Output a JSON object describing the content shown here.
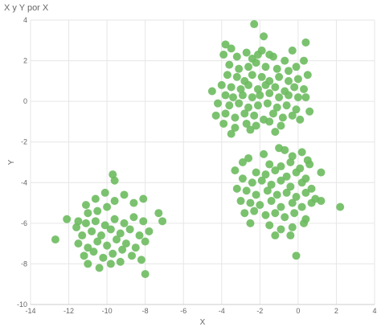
{
  "chart_data": {
    "type": "scatter",
    "title": "X y Y por X",
    "xlabel": "X",
    "ylabel": "Y",
    "xlim": [
      -14,
      4
    ],
    "ylim": [
      -10,
      4
    ],
    "x_ticks": [
      -14,
      -12,
      -10,
      -8,
      -6,
      -4,
      -2,
      0,
      2,
      4
    ],
    "y_ticks": [
      4,
      2,
      0,
      -2,
      -4,
      -6,
      -8,
      -10
    ],
    "grid": true,
    "point_color": "#6dbb5f",
    "series": [
      {
        "points": [
          [
            -2.3,
            3.8
          ],
          [
            -1.8,
            3.2
          ],
          [
            -3.8,
            2.8
          ],
          [
            -3.5,
            2.6
          ],
          [
            -2.7,
            2.4
          ],
          [
            -1.9,
            2.5
          ],
          [
            -1.5,
            2.3
          ],
          [
            0.4,
            2.9
          ],
          [
            -0.3,
            2.5
          ],
          [
            -3.9,
            2.3
          ],
          [
            -3.2,
            2.2
          ],
          [
            -2.4,
            2.1
          ],
          [
            -2.1,
            2.3
          ],
          [
            -1.3,
            2.2
          ],
          [
            -0.7,
            2.0
          ],
          [
            0.3,
            2.0
          ],
          [
            -3.6,
            1.8
          ],
          [
            -3.1,
            1.6
          ],
          [
            -2.6,
            1.7
          ],
          [
            -2.2,
            1.9
          ],
          [
            -1.7,
            1.7
          ],
          [
            -1.1,
            1.6
          ],
          [
            -0.5,
            1.5
          ],
          [
            -0.1,
            1.7
          ],
          [
            -3.7,
            1.3
          ],
          [
            -3.2,
            1.2
          ],
          [
            -2.8,
            1.0
          ],
          [
            -2.4,
            1.3
          ],
          [
            -1.9,
            1.2
          ],
          [
            -1.5,
            1.0
          ],
          [
            -1.0,
            1.2
          ],
          [
            -0.5,
            1.0
          ],
          [
            0.0,
            1.1
          ],
          [
            0.5,
            1.3
          ],
          [
            -4.0,
            0.8
          ],
          [
            -3.5,
            0.7
          ],
          [
            -3.0,
            0.6
          ],
          [
            -2.6,
            0.8
          ],
          [
            -2.1,
            0.6
          ],
          [
            -1.7,
            0.8
          ],
          [
            -1.2,
            0.7
          ],
          [
            -0.7,
            0.5
          ],
          [
            -0.2,
            0.7
          ],
          [
            0.3,
            0.6
          ],
          [
            -4.5,
            0.5
          ],
          [
            -3.8,
            0.3
          ],
          [
            -3.4,
            0.2
          ],
          [
            -2.9,
            0.3
          ],
          [
            -2.4,
            0.2
          ],
          [
            -2.0,
            0.3
          ],
          [
            -1.5,
            0.4
          ],
          [
            -1.0,
            0.2
          ],
          [
            -0.5,
            0.3
          ],
          [
            0.0,
            0.2
          ],
          [
            0.4,
            0.2
          ],
          [
            -4.2,
            -0.1
          ],
          [
            -3.6,
            -0.2
          ],
          [
            -3.1,
            -0.1
          ],
          [
            -2.6,
            -0.3
          ],
          [
            -2.1,
            -0.2
          ],
          [
            -1.6,
            -0.1
          ],
          [
            -1.1,
            -0.3
          ],
          [
            -0.6,
            -0.2
          ],
          [
            -0.1,
            -0.4
          ],
          [
            0.6,
            -0.5
          ],
          [
            -4.3,
            -0.7
          ],
          [
            -3.8,
            -0.6
          ],
          [
            -3.3,
            -0.8
          ],
          [
            -2.8,
            -0.6
          ],
          [
            -2.3,
            -0.7
          ],
          [
            -1.8,
            -0.9
          ],
          [
            -1.3,
            -0.6
          ],
          [
            -0.8,
            -0.8
          ],
          [
            -0.3,
            -0.7
          ],
          [
            0.1,
            -0.9
          ],
          [
            -3.9,
            -1.1
          ],
          [
            -3.3,
            -1.3
          ],
          [
            -2.7,
            -1.1
          ],
          [
            -2.2,
            -1.2
          ],
          [
            -1.5,
            -1.0
          ],
          [
            -0.9,
            -1.2
          ],
          [
            -3.5,
            -1.6
          ],
          [
            -2.5,
            -1.4
          ],
          [
            -1.2,
            -1.5
          ],
          [
            -1.0,
            -2.3
          ],
          [
            -0.7,
            -2.4
          ],
          [
            0.2,
            -2.5
          ],
          [
            -1.8,
            -2.6
          ],
          [
            -2.6,
            -2.8
          ],
          [
            -0.3,
            -2.7
          ],
          [
            0.5,
            -2.9
          ],
          [
            -2.9,
            -3.0
          ],
          [
            -1.5,
            -3.1
          ],
          [
            -0.9,
            -3.2
          ],
          [
            -0.4,
            -3.0
          ],
          [
            0.1,
            -3.3
          ],
          [
            0.6,
            -3.1
          ],
          [
            -3.3,
            -3.4
          ],
          [
            -2.2,
            -3.5
          ],
          [
            -1.7,
            -3.6
          ],
          [
            -1.2,
            -3.4
          ],
          [
            -0.6,
            -3.7
          ],
          [
            -0.1,
            -3.5
          ],
          [
            0.4,
            -3.8
          ],
          [
            1.2,
            -3.5
          ],
          [
            -2.9,
            -3.8
          ],
          [
            -2.4,
            -4.0
          ],
          [
            -1.9,
            -3.9
          ],
          [
            -1.4,
            -4.1
          ],
          [
            -0.9,
            -3.9
          ],
          [
            -0.4,
            -4.2
          ],
          [
            0.2,
            -4.0
          ],
          [
            0.7,
            -4.3
          ],
          [
            -3.2,
            -4.3
          ],
          [
            -2.7,
            -4.4
          ],
          [
            -2.2,
            -4.6
          ],
          [
            -1.6,
            -4.4
          ],
          [
            -1.1,
            -4.6
          ],
          [
            -0.6,
            -4.5
          ],
          [
            -0.1,
            -4.7
          ],
          [
            0.4,
            -4.5
          ],
          [
            0.9,
            -4.8
          ],
          [
            -3.0,
            -4.9
          ],
          [
            -2.5,
            -5.0
          ],
          [
            -2.0,
            -5.1
          ],
          [
            -1.4,
            -4.9
          ],
          [
            -0.9,
            -5.2
          ],
          [
            -0.3,
            -5.0
          ],
          [
            0.2,
            -5.2
          ],
          [
            0.7,
            -5.0
          ],
          [
            1.2,
            -4.9
          ],
          [
            -2.8,
            -5.5
          ],
          [
            -2.3,
            -5.4
          ],
          [
            -1.7,
            -5.6
          ],
          [
            -1.2,
            -5.5
          ],
          [
            -0.7,
            -5.7
          ],
          [
            -0.2,
            -5.5
          ],
          [
            0.4,
            -5.8
          ],
          [
            -2.5,
            -6.0
          ],
          [
            -1.5,
            -6.1
          ],
          [
            -0.9,
            -6.3
          ],
          [
            -0.3,
            -6.2
          ],
          [
            0.3,
            -6.0
          ],
          [
            -1.2,
            -6.6
          ],
          [
            -0.4,
            -6.6
          ],
          [
            2.2,
            -5.2
          ],
          [
            -0.1,
            -7.6
          ],
          [
            -12.7,
            -6.8
          ],
          [
            -12.1,
            -5.8
          ],
          [
            -11.5,
            -5.9
          ],
          [
            -11.0,
            -5.5
          ],
          [
            -10.5,
            -5.4
          ],
          [
            -10.0,
            -5.2
          ],
          [
            -11.1,
            -5.1
          ],
          [
            -10.6,
            -4.8
          ],
          [
            -10.1,
            -4.5
          ],
          [
            -9.6,
            -4.9
          ],
          [
            -9.1,
            -4.6
          ],
          [
            -8.6,
            -5.0
          ],
          [
            -8.1,
            -4.8
          ],
          [
            -9.7,
            -3.6
          ],
          [
            -9.6,
            -3.9
          ],
          [
            -11.6,
            -6.2
          ],
          [
            -11.1,
            -6.0
          ],
          [
            -10.6,
            -5.9
          ],
          [
            -10.1,
            -6.1
          ],
          [
            -9.6,
            -5.8
          ],
          [
            -9.1,
            -6.0
          ],
          [
            -8.6,
            -5.7
          ],
          [
            -8.1,
            -5.9
          ],
          [
            -7.3,
            -5.5
          ],
          [
            -7.1,
            -5.9
          ],
          [
            -11.3,
            -6.6
          ],
          [
            -10.8,
            -6.4
          ],
          [
            -10.3,
            -6.6
          ],
          [
            -9.8,
            -6.3
          ],
          [
            -9.3,
            -6.5
          ],
          [
            -8.8,
            -6.3
          ],
          [
            -8.3,
            -6.6
          ],
          [
            -7.8,
            -6.4
          ],
          [
            -11.5,
            -7.0
          ],
          [
            -11.0,
            -7.2
          ],
          [
            -10.5,
            -6.9
          ],
          [
            -10.0,
            -7.1
          ],
          [
            -9.5,
            -6.8
          ],
          [
            -9.0,
            -7.0
          ],
          [
            -8.5,
            -7.2
          ],
          [
            -8.0,
            -6.9
          ],
          [
            -11.2,
            -7.6
          ],
          [
            -10.7,
            -7.4
          ],
          [
            -10.2,
            -7.7
          ],
          [
            -9.7,
            -7.5
          ],
          [
            -9.2,
            -7.3
          ],
          [
            -8.7,
            -7.6
          ],
          [
            -8.2,
            -7.8
          ],
          [
            -11.0,
            -8.0
          ],
          [
            -10.4,
            -8.2
          ],
          [
            -9.8,
            -8.0
          ],
          [
            -9.3,
            -7.9
          ],
          [
            -8.0,
            -8.5
          ]
        ]
      }
    ]
  }
}
